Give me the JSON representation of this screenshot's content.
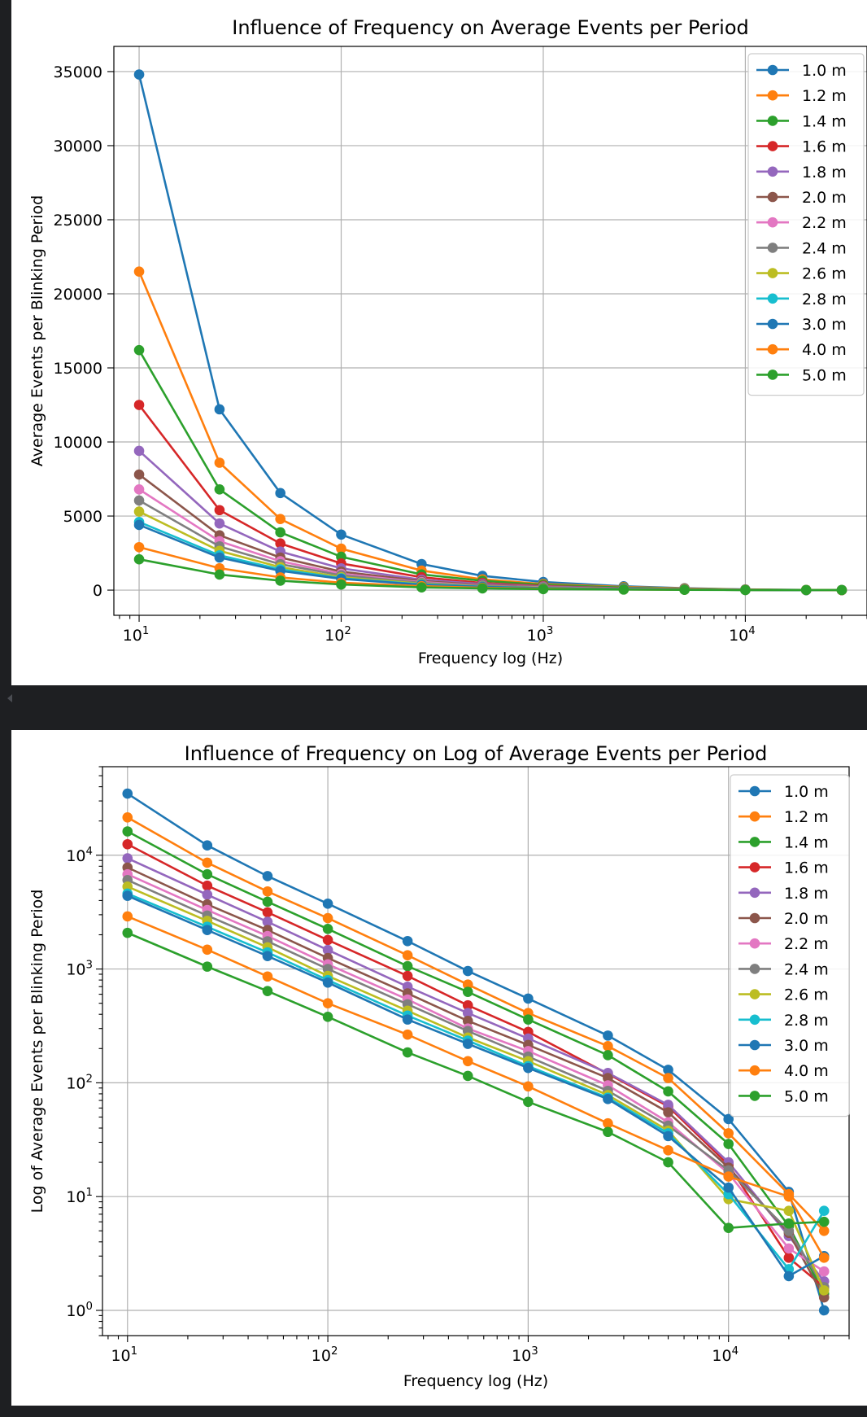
{
  "chart_data": [
    {
      "type": "line",
      "title": "Influence of Frequency on Average Events per Period",
      "xlabel": "Frequency log (Hz)",
      "ylabel": "Average Events per Blinking Period",
      "xscale": "log",
      "yscale": "linear",
      "xlim": [
        7.5,
        40000
      ],
      "ylim": [
        -1700,
        36700
      ],
      "yticks": [
        0,
        5000,
        10000,
        15000,
        20000,
        25000,
        30000,
        35000
      ],
      "ytick_labels": [
        "0",
        "5000",
        "10000",
        "15000",
        "20000",
        "25000",
        "30000",
        "35000"
      ],
      "xticks": [
        10,
        100,
        1000,
        10000
      ],
      "xtick_base": [
        "10",
        "10",
        "10",
        "10"
      ],
      "xtick_exp": [
        "1",
        "2",
        "3",
        "4"
      ],
      "grid": true,
      "legend": "top-right"
    },
    {
      "type": "line",
      "title": "Influence of Frequency on Log of Average Events per Period",
      "xlabel": "Frequency log (Hz)",
      "ylabel": "Log of Average Events per Blinking Period",
      "xscale": "log",
      "yscale": "log",
      "xlim": [
        7.5,
        40000
      ],
      "ylim": [
        0.6,
        60000
      ],
      "yticks": [
        1,
        10,
        100,
        1000,
        10000
      ],
      "ytick_base": [
        "10",
        "10",
        "10",
        "10",
        "10"
      ],
      "ytick_exp": [
        "0",
        "1",
        "2",
        "3",
        "4"
      ],
      "xticks": [
        10,
        100,
        1000,
        10000
      ],
      "xtick_base": [
        "10",
        "10",
        "10",
        "10"
      ],
      "xtick_exp": [
        "1",
        "2",
        "3",
        "4"
      ],
      "grid": true,
      "legend": "top-right"
    }
  ],
  "shared": {
    "x": [
      10,
      25,
      50,
      100,
      250,
      500,
      1000,
      2500,
      5000,
      10000,
      20000,
      30000
    ],
    "series": [
      {
        "name": "1.0 m",
        "color": "#1f77b4",
        "values": [
          34800,
          12200,
          6550,
          3750,
          1760,
          960,
          550,
          260,
          130,
          48,
          11.0,
          1.0
        ]
      },
      {
        "name": "1.2 m",
        "color": "#ff7f0e",
        "values": [
          21500,
          8600,
          4800,
          2800,
          1320,
          730,
          410,
          210,
          110,
          36,
          10.5,
          5.0
        ]
      },
      {
        "name": "1.4 m",
        "color": "#2ca02c",
        "values": [
          16200,
          6800,
          3900,
          2250,
          1060,
          630,
          360,
          175,
          84,
          29,
          5.5,
          1.4
        ]
      },
      {
        "name": "1.6 m",
        "color": "#d62728",
        "values": [
          12500,
          5400,
          3150,
          1800,
          870,
          480,
          280,
          120,
          62,
          19,
          2.9,
          1.6
        ]
      },
      {
        "name": "1.8 m",
        "color": "#9467bd",
        "values": [
          9400,
          4500,
          2600,
          1470,
          700,
          410,
          245,
          122,
          64,
          20,
          4.5,
          1.8
        ]
      },
      {
        "name": "2.0 m",
        "color": "#8c564b",
        "values": [
          7800,
          3700,
          2200,
          1250,
          610,
          350,
          215,
          110,
          55,
          18,
          4.8,
          1.3
        ]
      },
      {
        "name": "2.2 m",
        "color": "#e377c2",
        "values": [
          6800,
          3300,
          1950,
          1100,
          540,
          300,
          190,
          95,
          45,
          16,
          3.5,
          2.2
        ]
      },
      {
        "name": "2.4 m",
        "color": "#7f7f7f",
        "values": [
          6050,
          2950,
          1750,
          1000,
          490,
          285,
          170,
          85,
          42,
          17,
          5.0,
          1.6
        ]
      },
      {
        "name": "2.6 m",
        "color": "#bcbd22",
        "values": [
          5300,
          2650,
          1550,
          870,
          430,
          250,
          155,
          78,
          38,
          9.5,
          7.5,
          1.5
        ]
      },
      {
        "name": "2.8 m",
        "color": "#17becf",
        "values": [
          4600,
          2350,
          1400,
          800,
          390,
          235,
          140,
          74,
          36,
          10.5,
          2.3,
          7.5
        ]
      },
      {
        "name": "3.0 m",
        "color": "#1f77b4",
        "values": [
          4400,
          2200,
          1300,
          760,
          360,
          220,
          135,
          72,
          34,
          12,
          2.0,
          3.0
        ]
      },
      {
        "name": "4.0 m",
        "color": "#ff7f0e",
        "values": [
          2900,
          1480,
          860,
          500,
          265,
          155,
          93,
          44,
          25.5,
          15,
          10.0,
          2.9
        ]
      },
      {
        "name": "5.0 m",
        "color": "#2ca02c",
        "values": [
          2080,
          1050,
          640,
          380,
          185,
          115,
          68,
          37,
          20,
          5.3,
          5.8,
          6.0
        ]
      }
    ]
  }
}
